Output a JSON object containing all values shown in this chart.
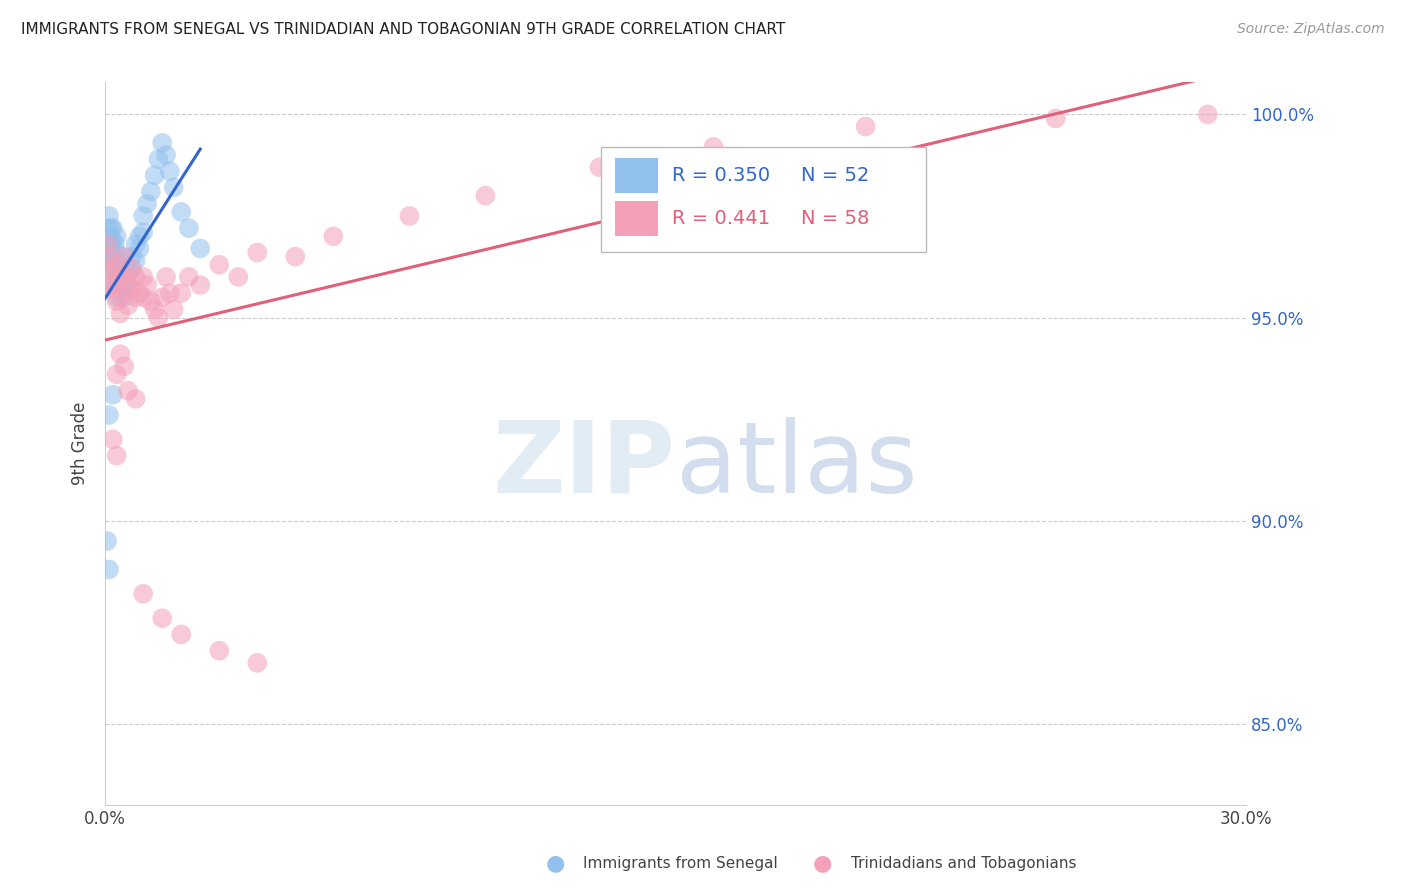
{
  "title": "IMMIGRANTS FROM SENEGAL VS TRINIDADIAN AND TOBAGONIAN 9TH GRADE CORRELATION CHART",
  "source": "Source: ZipAtlas.com",
  "ylabel": "9th Grade",
  "legend_blue_r": "R = 0.350",
  "legend_blue_n": "N = 52",
  "legend_pink_r": "R = 0.441",
  "legend_pink_n": "N = 58",
  "legend_label_blue": "Immigrants from Senegal",
  "legend_label_pink": "Trinidadians and Tobagonians",
  "blue_color": "#92C0ED",
  "pink_color": "#F4A0B8",
  "blue_line_color": "#3366CC",
  "pink_line_color": "#E0607A",
  "title_color": "#222222",
  "axis_label_color": "#444444",
  "right_tick_color": "#3366CC",
  "xlim": [
    0.0,
    0.3
  ],
  "ylim": [
    0.83,
    1.008
  ],
  "yticks": [
    0.85,
    0.9,
    0.95,
    1.0
  ],
  "ytick_labels": [
    "85.0%",
    "90.0%",
    "95.0%",
    "100.0%"
  ],
  "xtick_positions": [
    0.0,
    0.05,
    0.1,
    0.15,
    0.2,
    0.25,
    0.3
  ],
  "blue_x": [
    0.0005,
    0.0008,
    0.001,
    0.001,
    0.001,
    0.0012,
    0.0015,
    0.0015,
    0.002,
    0.002,
    0.002,
    0.002,
    0.002,
    0.0025,
    0.0025,
    0.003,
    0.003,
    0.003,
    0.003,
    0.003,
    0.0035,
    0.004,
    0.004,
    0.004,
    0.005,
    0.005,
    0.005,
    0.006,
    0.006,
    0.007,
    0.007,
    0.008,
    0.008,
    0.009,
    0.009,
    0.01,
    0.01,
    0.011,
    0.012,
    0.013,
    0.014,
    0.015,
    0.016,
    0.017,
    0.018,
    0.02,
    0.022,
    0.025,
    0.002,
    0.001,
    0.0005,
    0.001
  ],
  "blue_y": [
    0.968,
    0.972,
    0.975,
    0.97,
    0.965,
    0.968,
    0.972,
    0.966,
    0.972,
    0.969,
    0.965,
    0.961,
    0.958,
    0.968,
    0.963,
    0.97,
    0.966,
    0.962,
    0.958,
    0.955,
    0.96,
    0.965,
    0.961,
    0.957,
    0.962,
    0.958,
    0.955,
    0.961,
    0.958,
    0.965,
    0.962,
    0.968,
    0.964,
    0.97,
    0.967,
    0.975,
    0.971,
    0.978,
    0.981,
    0.985,
    0.989,
    0.993,
    0.99,
    0.986,
    0.982,
    0.976,
    0.972,
    0.967,
    0.931,
    0.926,
    0.895,
    0.888
  ],
  "pink_x": [
    0.0005,
    0.001,
    0.001,
    0.0015,
    0.002,
    0.002,
    0.003,
    0.003,
    0.003,
    0.004,
    0.004,
    0.004,
    0.005,
    0.005,
    0.006,
    0.006,
    0.007,
    0.007,
    0.008,
    0.008,
    0.009,
    0.01,
    0.01,
    0.011,
    0.012,
    0.013,
    0.014,
    0.015,
    0.016,
    0.017,
    0.018,
    0.02,
    0.022,
    0.025,
    0.03,
    0.035,
    0.04,
    0.05,
    0.06,
    0.08,
    0.1,
    0.13,
    0.16,
    0.2,
    0.25,
    0.29,
    0.003,
    0.004,
    0.005,
    0.006,
    0.008,
    0.01,
    0.015,
    0.02,
    0.03,
    0.04,
    0.002,
    0.003
  ],
  "pink_y": [
    0.968,
    0.965,
    0.961,
    0.958,
    0.962,
    0.957,
    0.963,
    0.958,
    0.954,
    0.96,
    0.955,
    0.951,
    0.965,
    0.96,
    0.958,
    0.953,
    0.962,
    0.957,
    0.96,
    0.955,
    0.956,
    0.96,
    0.955,
    0.958,
    0.954,
    0.952,
    0.95,
    0.955,
    0.96,
    0.956,
    0.952,
    0.956,
    0.96,
    0.958,
    0.963,
    0.96,
    0.966,
    0.965,
    0.97,
    0.975,
    0.98,
    0.987,
    0.992,
    0.997,
    0.999,
    1.0,
    0.936,
    0.941,
    0.938,
    0.932,
    0.93,
    0.882,
    0.876,
    0.872,
    0.868,
    0.865,
    0.92,
    0.916
  ],
  "blue_line_x": [
    0.0,
    0.025
  ],
  "pink_line_x": [
    0.0,
    0.3
  ]
}
